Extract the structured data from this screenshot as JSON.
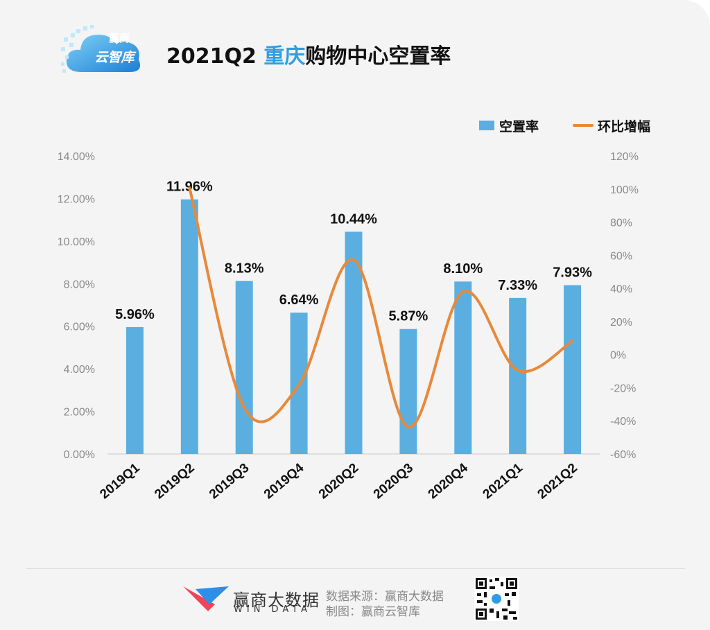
{
  "header": {
    "logo_line1": "赢商",
    "logo_line2": "云智库",
    "title_prefix": "2021Q2 ",
    "title_city": "重庆",
    "title_suffix": "购物中心空置率"
  },
  "legend": {
    "bar_label": "空置率",
    "line_label": "环比增幅"
  },
  "colors": {
    "bar": "#5aafe0",
    "line": "#e8893a",
    "title_highlight": "#2f9de3",
    "axis_text": "#8a8a8a"
  },
  "chart_data": {
    "type": "bar",
    "categories": [
      "2019Q1",
      "2019Q2",
      "2019Q3",
      "2019Q4",
      "2020Q2",
      "2020Q3",
      "2020Q4",
      "2021Q1",
      "2021Q2"
    ],
    "series": [
      {
        "name": "空置率",
        "type": "bar",
        "axis": "left",
        "values": [
          5.96,
          11.96,
          8.13,
          6.64,
          10.44,
          5.87,
          8.1,
          7.33,
          7.93
        ],
        "labels": [
          "5.96%",
          "11.96%",
          "8.13%",
          "6.64%",
          "10.44%",
          "5.87%",
          "8.10%",
          "7.33%",
          "7.93%"
        ]
      },
      {
        "name": "环比增幅",
        "type": "line",
        "axis": "right",
        "smooth": true,
        "values": [
          null,
          100.7,
          -32.0,
          -18.3,
          57.2,
          -43.8,
          38.0,
          -9.5,
          8.2
        ]
      }
    ],
    "y_left": {
      "ylim": [
        0,
        14
      ],
      "ticks": [
        0,
        2,
        4,
        6,
        8,
        10,
        12,
        14
      ],
      "tick_labels": [
        "0.00%",
        "2.00%",
        "4.00%",
        "6.00%",
        "8.00%",
        "10.00%",
        "12.00%",
        "14.00%"
      ]
    },
    "y_right": {
      "ylim": [
        -60,
        120
      ],
      "ticks": [
        -60,
        -40,
        -20,
        0,
        20,
        40,
        60,
        80,
        100,
        120
      ],
      "tick_labels": [
        "-60%",
        "-40%",
        "-20%",
        "0%",
        "20%",
        "40%",
        "60%",
        "80%",
        "100%",
        "120%"
      ]
    },
    "grid": false,
    "legend_position": "top-right"
  },
  "footer": {
    "brand_name": "赢商大数据",
    "brand_sub": "WIN DATA",
    "source": "数据来源：赢商大数据",
    "maker": "制图：赢商云智库"
  }
}
